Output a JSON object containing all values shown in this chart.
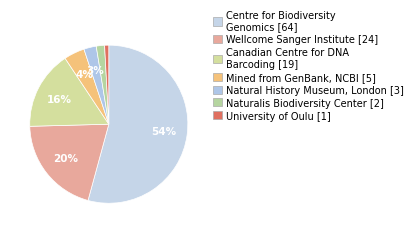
{
  "labels": [
    "Centre for Biodiversity\nGenomics [64]",
    "Wellcome Sanger Institute [24]",
    "Canadian Centre for DNA\nBarcoding [19]",
    "Mined from GenBank, NCBI [5]",
    "Natural History Museum, London [3]",
    "Naturalis Biodiversity Center [2]",
    "University of Oulu [1]"
  ],
  "values": [
    64,
    24,
    19,
    5,
    3,
    2,
    1
  ],
  "colors": [
    "#c5d5e8",
    "#e8a89c",
    "#d4df9e",
    "#f5c27a",
    "#aec6e8",
    "#b5d5a0",
    "#e07060"
  ],
  "pct_distance": 0.7,
  "legend_fontsize": 7.0,
  "text_fontsize": 7.5
}
